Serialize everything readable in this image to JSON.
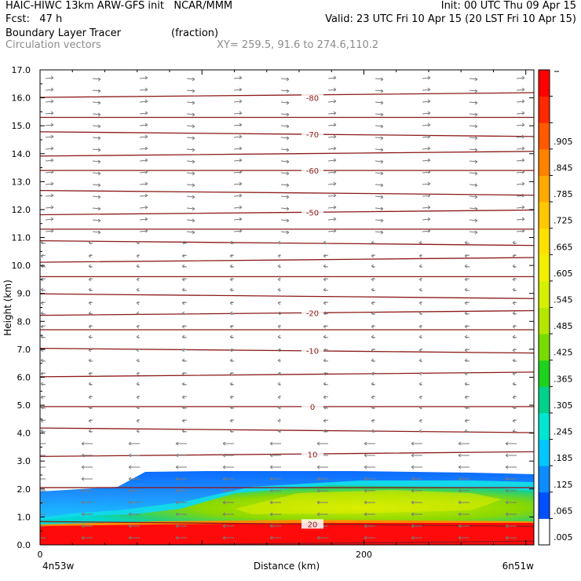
{
  "header": {
    "left_line1": "HAIC-HIWC 13km ARW-GFS init   NCAR/MMM",
    "left_line2": "Fcst:   47 h",
    "right_line1": "Init: 00 UTC Thu 09 Apr 15",
    "right_line2": "Valid: 23 UTC Fri 10 Apr 15 (20 LST Fri 10 Apr 15)",
    "field_name": "Boundary Layer Tracer",
    "field_units": "(fraction)",
    "vector_name": "Circulation vectors",
    "xy_range": "XY= 259.5, 91.6 to 274.6,110.2"
  },
  "chart_data": {
    "type": "heatmap",
    "xlabel": "Distance (km)",
    "ylabel": "Height (km)",
    "x_ticks": [
      "0",
      "200"
    ],
    "x_end_labels": [
      "4n53w",
      "6n51w"
    ],
    "xlim": [
      0,
      305
    ],
    "ylim": [
      0,
      17
    ],
    "y_ticks": [
      "0.0",
      "1.0",
      "2.0",
      "3.0",
      "4.0",
      "5.0",
      "6.0",
      "7.0",
      "8.0",
      "9.0",
      "10.0",
      "11.0",
      "12.0",
      "13.0",
      "14.0",
      "15.0",
      "16.0",
      "17.0"
    ],
    "colorbar": {
      "labels": [
        ".005",
        ".065",
        ".125",
        ".185",
        ".245",
        ".305",
        ".365",
        ".425",
        ".485",
        ".545",
        ".605",
        ".665",
        ".725",
        ".785",
        ".845",
        ".905",
        "",
        ""
      ],
      "colors": [
        "#ffffff",
        "#0050ff",
        "#0c8cff",
        "#00c8ff",
        "#00e6d2",
        "#00d28c",
        "#1ed21e",
        "#78dc00",
        "#b4e600",
        "#d2f000",
        "#f0f000",
        "#ffe100",
        "#ffc800",
        "#ffaa00",
        "#ff8200",
        "#ff5a00",
        "#ff2800",
        "#ff0000"
      ]
    },
    "tracer_layers": [
      {
        "name": "red_surface",
        "top_km": 0.75
      },
      {
        "name": "blue_top",
        "top_km": 2.55
      }
    ],
    "temperature_contours": [
      {
        "label": "-80",
        "height_km": 16.0
      },
      {
        "label": "-70",
        "height_km": 14.7
      },
      {
        "label": "-60",
        "height_km": 13.4
      },
      {
        "label": "-50",
        "height_km": 11.9
      },
      {
        "label": "-20",
        "height_km": 8.3
      },
      {
        "label": "-10",
        "height_km": 6.95
      },
      {
        "label": "0",
        "height_km": 4.95
      },
      {
        "label": "10",
        "height_km": 3.25
      },
      {
        "label": "20",
        "height_km": 0.75
      }
    ],
    "isotherm_heights_km": [
      16.1,
      15.3,
      14.7,
      14.0,
      13.4,
      12.6,
      11.9,
      11.3,
      10.8,
      10.2,
      9.6,
      8.9,
      8.3,
      7.7,
      6.95,
      6.1,
      4.95,
      4.1,
      3.25,
      2.05,
      0.75,
      0.05
    ]
  }
}
